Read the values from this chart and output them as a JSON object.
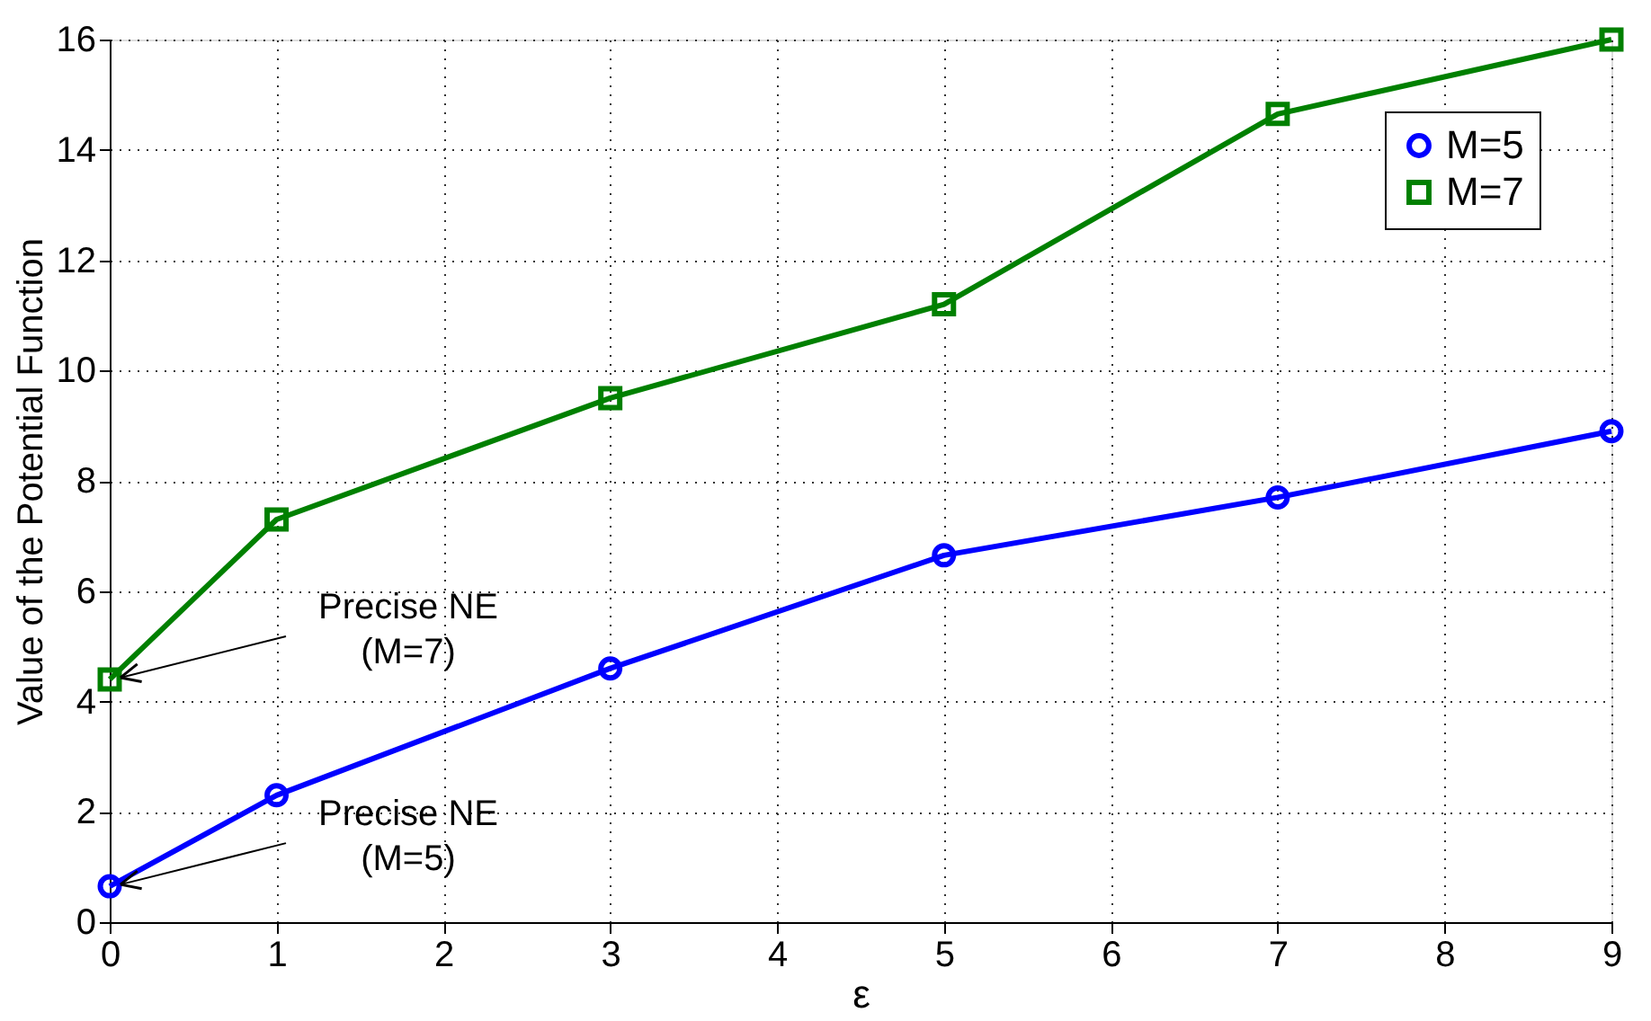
{
  "chart_data": {
    "type": "line",
    "xlabel": "ε",
    "ylabel": "Value of the Potential Function",
    "x": [
      0,
      1,
      3,
      5,
      7,
      9
    ],
    "series": [
      {
        "name": "M=5",
        "color": "#0000ff",
        "marker": "circle",
        "values": [
          0.65,
          2.3,
          4.6,
          6.65,
          7.7,
          8.9
        ]
      },
      {
        "name": "M=7",
        "color": "#008000",
        "marker": "square",
        "values": [
          4.4,
          7.3,
          9.5,
          11.2,
          14.65,
          16
        ]
      }
    ],
    "xlim": [
      0,
      9
    ],
    "xticks": [
      0,
      1,
      2,
      3,
      4,
      5,
      6,
      7,
      8,
      9
    ],
    "ylim": [
      0,
      16
    ],
    "yticks": [
      0,
      2,
      4,
      6,
      8,
      10,
      12,
      14,
      16
    ],
    "grid": true,
    "legend": "top right",
    "line_style": "solid",
    "annotations": [
      {
        "text": "Precise NE\n(M=7)",
        "x": 0,
        "y": 4.4
      },
      {
        "text": "Precise NE\n(M=5)",
        "x": 0,
        "y": 0.65
      }
    ]
  }
}
